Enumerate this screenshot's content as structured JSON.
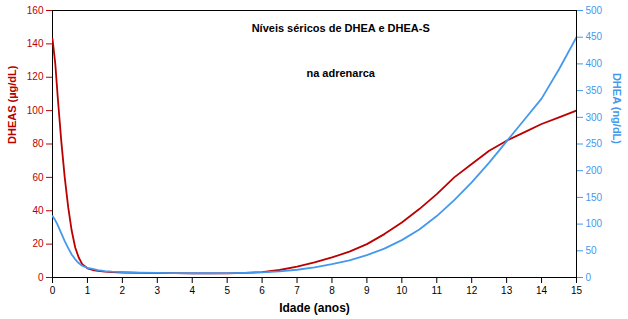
{
  "chart_data": {
    "type": "line",
    "title": "Níveis séricos de DHEA e DHEA-S",
    "subtitle": "na adrenarca",
    "xlabel": "Idade (anos)",
    "ylabel": "DHEAS (µg/dL)",
    "y2label": "DHEA (ng/dL)",
    "x": [
      0,
      0.08,
      0.15,
      0.25,
      0.35,
      0.45,
      0.55,
      0.65,
      0.75,
      0.85,
      1.0,
      1.15,
      1.3,
      1.5,
      1.7,
      2.0,
      2.5,
      3.0,
      3.5,
      4.0,
      4.5,
      5.0,
      5.5,
      6.0,
      6.5,
      7.0,
      7.5,
      8.0,
      8.5,
      9.0,
      9.5,
      10.0,
      10.5,
      11.0,
      11.5,
      12.0,
      12.5,
      13.0,
      13.5,
      14.0,
      14.5,
      15.0
    ],
    "series": [
      {
        "color": "#bb0000",
        "axis": "y",
        "values": [
          143,
          128,
          108,
          82,
          60,
          42,
          28,
          18,
          12,
          8,
          5.5,
          4.5,
          4.0,
          3.5,
          3.2,
          3.0,
          2.8,
          2.7,
          2.6,
          2.5,
          2.5,
          2.5,
          2.8,
          3.2,
          4.5,
          6.5,
          9.0,
          12.0,
          15.5,
          20.0,
          26.0,
          33.0,
          41.0,
          50.0,
          60.0,
          68.0,
          76.0,
          82.0,
          87.0,
          92.0,
          96.0,
          100.0
        ]
      },
      {
        "color": "#4499ee",
        "axis": "y2",
        "values": [
          115,
          107,
          98,
          83,
          68,
          55,
          43,
          34,
          27,
          22,
          18,
          16,
          14,
          12,
          11,
          10,
          9,
          8.5,
          8.2,
          8.0,
          8.0,
          8.2,
          8.8,
          9.5,
          11.5,
          14.5,
          19.0,
          25.0,
          32.0,
          42.0,
          54.0,
          70.0,
          90.0,
          115.0,
          145.0,
          178.0,
          215.0,
          255.0,
          295.0,
          335.0,
          390.0,
          450.0
        ]
      }
    ],
    "xlim": [
      0,
      15
    ],
    "xticks": [
      0,
      1,
      2,
      3,
      4,
      5,
      6,
      7,
      8,
      9,
      10,
      11,
      12,
      13,
      14,
      15
    ],
    "ylim": [
      0,
      160
    ],
    "yticks": [
      0,
      20,
      40,
      60,
      80,
      100,
      120,
      140,
      160
    ],
    "y2lim": [
      0,
      500
    ],
    "y2ticks": [
      0,
      50,
      100,
      150,
      200,
      250,
      300,
      350,
      400,
      450,
      500
    ],
    "grid": false
  }
}
